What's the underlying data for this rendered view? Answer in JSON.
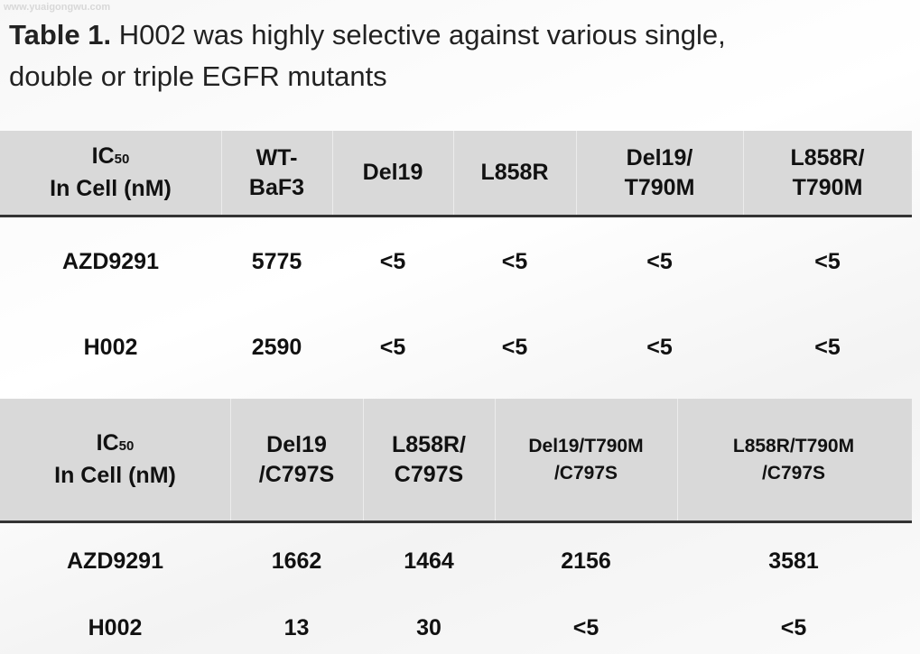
{
  "watermark": "www.yuaigongwu.com",
  "title": {
    "label": "Table 1.",
    "lines": [
      "H002 was highly selective against various single,",
      "double or triple EGFR mutants"
    ]
  },
  "tables": [
    {
      "header": [
        {
          "symbol": "IC",
          "subscript": "50",
          "unit": "In Cell (nM)"
        },
        {
          "lines": [
            "WT-",
            "BaF3"
          ]
        },
        {
          "lines": [
            "Del19"
          ]
        },
        {
          "lines": [
            "L858R"
          ]
        },
        {
          "lines": [
            "Del19/",
            "T790M"
          ]
        },
        {
          "lines": [
            "L858R/",
            "T790M"
          ]
        }
      ],
      "rows": [
        [
          "AZD9291",
          "5775",
          "<5",
          "<5",
          "<5",
          "<5"
        ],
        [
          "H002",
          "2590",
          "<5",
          "<5",
          "<5",
          "<5"
        ]
      ]
    },
    {
      "header": [
        {
          "symbol": "IC",
          "subscript": "50",
          "unit": "In Cell (nM)"
        },
        {
          "lines": [
            "Del19",
            "/C797S"
          ]
        },
        {
          "lines": [
            "L858R/",
            "C797S"
          ]
        },
        {
          "lines": [
            "Del19/T790M",
            "/C797S"
          ]
        },
        {
          "lines": [
            "L858R/T790M",
            "/C797S"
          ]
        }
      ],
      "rows": [
        [
          "AZD9291",
          "1662",
          "1464",
          "2156",
          "3581"
        ],
        [
          "H002",
          "13",
          "30",
          "<5",
          "<5"
        ]
      ]
    }
  ]
}
